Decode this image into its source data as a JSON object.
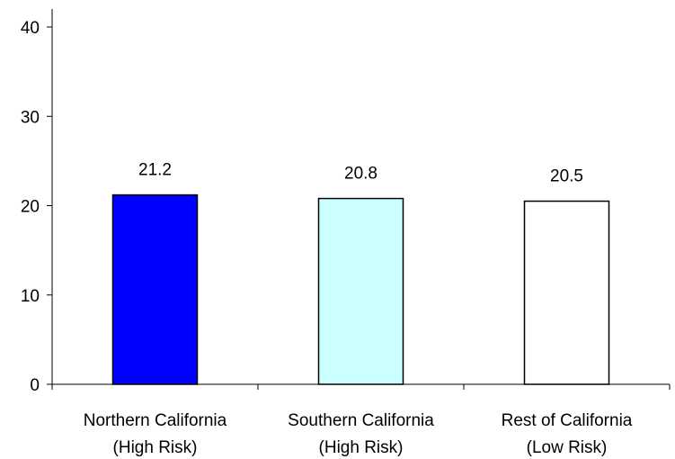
{
  "chart_data": {
    "type": "bar",
    "categories": [
      [
        "Northern California",
        "(High Risk)"
      ],
      [
        "Southern California",
        "(High Risk)"
      ],
      [
        "Rest of California",
        "(Low Risk)"
      ]
    ],
    "values": [
      21.2,
      20.8,
      20.5
    ],
    "data_labels": [
      "21.2",
      "20.8",
      "20.5"
    ],
    "bar_colors": [
      "#0000ff",
      "#ccffff",
      "#ffffff"
    ],
    "ylim": [
      0,
      40
    ],
    "yticks": [
      0,
      10,
      20,
      30,
      40
    ],
    "ytick_labels": [
      "0",
      "10",
      "20",
      "30",
      "40"
    ],
    "grid": false,
    "legend": "none",
    "title": "",
    "xlabel": "",
    "ylabel": ""
  }
}
